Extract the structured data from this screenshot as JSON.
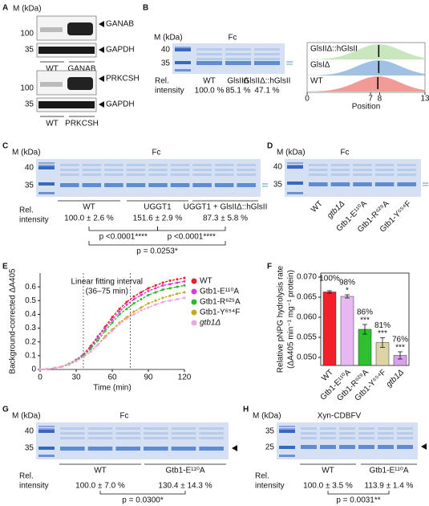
{
  "panels": {
    "a": {
      "label": "A",
      "mw_title": "M (kDa)",
      "blots": [
        {
          "marker": "100",
          "target": "GANAB",
          "control_marker": "35",
          "control": "GAPDH",
          "lanes": [
            "WT",
            "GANAB"
          ]
        },
        {
          "marker": "100",
          "target": "PRKCSH",
          "control_marker": "35",
          "control": "GAPDH",
          "lanes": [
            "WT",
            "PRKCSH"
          ]
        }
      ]
    },
    "b": {
      "label": "B",
      "mw_title": "M (kDa)",
      "protein": "Fc",
      "markers": [
        "40",
        "35"
      ],
      "row_title": [
        "Rel.",
        "intensity"
      ],
      "lanes": [
        "WT",
        "GlsIIΔ",
        "GlsIIΔ::hGlsII"
      ],
      "intensities": [
        "100.0 %",
        "85.1 %",
        "47.1 %"
      ],
      "ridge": {
        "labels": [
          "GlsIIΔ::hGlsII",
          "GlsIΔ",
          "WT"
        ],
        "colors": [
          "#bfe3b4",
          "#8fb6de",
          "#f08a84"
        ],
        "medians": [
          7.9,
          7.9,
          7.8
        ],
        "xlim": [
          0,
          13
        ],
        "xticks": [
          0,
          7,
          8,
          13
        ],
        "xlabel": "Position"
      }
    },
    "c": {
      "label": "C",
      "mw_title": "M (kDa)",
      "protein": "Fc",
      "markers": [
        "40",
        "35"
      ],
      "row_title": [
        "Rel.",
        "intensity"
      ],
      "groups": [
        "WT",
        "UGGT1",
        "UGGT1 + GlsIIΔ::hGlsII"
      ],
      "intensities": [
        "100.0 ± 2.6 %",
        "151.6 ± 2.9 %",
        "87.3 ± 5.8 %"
      ],
      "comparisons": [
        "p <0.0001****",
        "p <0.0001****",
        "p = 0.0253*"
      ]
    },
    "d": {
      "label": "D",
      "mw_title": "M (kDa)",
      "protein": "Fc",
      "markers": [
        "40",
        "35"
      ],
      "lanes": [
        "WT",
        "gtb1Δ",
        "Gtb1-E¹¹⁰A",
        "Gtb1-R⁶²⁹A",
        "Gtb1-Y⁶⁵⁴F"
      ]
    },
    "g": {
      "label": "G",
      "mw_title": "M (kDa)",
      "protein": "Fc",
      "markers": [
        "40",
        "35"
      ],
      "row_title": [
        "Rel.",
        "intensity"
      ],
      "groups": [
        "WT",
        "Gtb1-E¹¹⁰A"
      ],
      "intensities": [
        "100.0 ± 7.0 %",
        "130.4 ± 14.3 %"
      ],
      "comparisons": [
        "p = 0.0300*"
      ]
    },
    "h": {
      "label": "H",
      "mw_title": "M (kDa)",
      "protein": "Xyn-CDBFV",
      "markers": [
        "35",
        "25"
      ],
      "row_title": [
        "Rel.",
        "intensity"
      ],
      "groups": [
        "WT",
        "Gtb1-E¹¹⁰A"
      ],
      "intensities": [
        "100.0 ± 3.5 %",
        "113.9 ± 1.4 %"
      ],
      "comparisons": [
        "p = 0.0031**"
      ]
    }
  },
  "chart_data": [
    {
      "type": "line",
      "panel": "E",
      "xlabel": "Time (min)",
      "ylabel": "Background-corrected ΔA405",
      "annotation": [
        "Linear fitting interval",
        "(36–75 min)"
      ],
      "vlines": [
        36,
        75
      ],
      "legend": "right",
      "xlim": [
        0,
        120
      ],
      "xticks": [
        0,
        30,
        60,
        90,
        120
      ],
      "ylim": [
        0,
        0.7
      ],
      "yticks": [
        0,
        0.1,
        0.2,
        0.3,
        0.4,
        0.5,
        0.6
      ],
      "x": [
        0,
        6,
        12,
        18,
        24,
        30,
        36,
        42,
        48,
        54,
        60,
        66,
        72,
        78,
        84,
        90,
        96,
        102,
        108,
        114,
        120
      ],
      "series": [
        {
          "name": "WT",
          "color": "#e8202a",
          "values": [
            0,
            0.003,
            0.01,
            0.02,
            0.04,
            0.07,
            0.11,
            0.17,
            0.24,
            0.31,
            0.38,
            0.44,
            0.49,
            0.53,
            0.56,
            0.59,
            0.61,
            0.63,
            0.645,
            0.655,
            0.665
          ]
        },
        {
          "name": "Gtb1-E¹¹⁰A",
          "color": "#d83cd8",
          "values": [
            0,
            0.003,
            0.01,
            0.02,
            0.04,
            0.07,
            0.11,
            0.16,
            0.23,
            0.3,
            0.36,
            0.42,
            0.47,
            0.51,
            0.54,
            0.57,
            0.59,
            0.61,
            0.62,
            0.63,
            0.64
          ]
        },
        {
          "name": "Gtb1-R⁶²⁹A",
          "color": "#2db82d",
          "values": [
            0,
            0.003,
            0.01,
            0.02,
            0.04,
            0.065,
            0.1,
            0.15,
            0.21,
            0.28,
            0.34,
            0.4,
            0.44,
            0.48,
            0.51,
            0.54,
            0.56,
            0.58,
            0.59,
            0.6,
            0.61
          ]
        },
        {
          "name": "Gtb1-Y⁶⁵⁴F",
          "color": "#c9a81e",
          "values": [
            0,
            0.003,
            0.01,
            0.02,
            0.035,
            0.06,
            0.09,
            0.13,
            0.18,
            0.24,
            0.29,
            0.34,
            0.38,
            0.42,
            0.45,
            0.48,
            0.5,
            0.52,
            0.535,
            0.55,
            0.56
          ]
        },
        {
          "name": "gtb1Δ",
          "color": "#f3a3e3",
          "values": [
            0,
            0.003,
            0.01,
            0.02,
            0.035,
            0.06,
            0.09,
            0.13,
            0.18,
            0.23,
            0.28,
            0.33,
            0.37,
            0.4,
            0.43,
            0.45,
            0.47,
            0.49,
            0.5,
            0.51,
            0.52
          ]
        }
      ]
    },
    {
      "type": "bar",
      "panel": "F",
      "ylabel": "Relative pNPG hydrolysis rate",
      "ylabel_2": "(ΔA405 min⁻¹ mg⁻¹ protein)",
      "categories": [
        "WT",
        "Gtb1-E¹¹⁰A",
        "Gtb1-R⁶²⁹A",
        "Gtb1-Y⁶⁵⁴F",
        "gtb1Δ"
      ],
      "values": [
        0.0663,
        0.0652,
        0.057,
        0.0537,
        0.0505
      ],
      "errors": [
        0.0003,
        0.0004,
        0.0012,
        0.0012,
        0.0009
      ],
      "colors": [
        "#f2202a",
        "#e8b8f2",
        "#2fc02f",
        "#dcd4a4",
        "#d8a2ea"
      ],
      "percent_labels": [
        "100%",
        "98%",
        "86%",
        "81%",
        "76%"
      ],
      "significance": [
        null,
        "*",
        "***",
        "***",
        "***"
      ],
      "ylim": [
        0.048,
        0.071
      ],
      "yticks": [
        {
          "value": 0.05,
          "label": "0.050"
        },
        0.055,
        {
          "value": 0.06,
          "label": "0.060"
        },
        0.065,
        {
          "value": 0.07,
          "label": "0.070"
        }
      ]
    }
  ]
}
